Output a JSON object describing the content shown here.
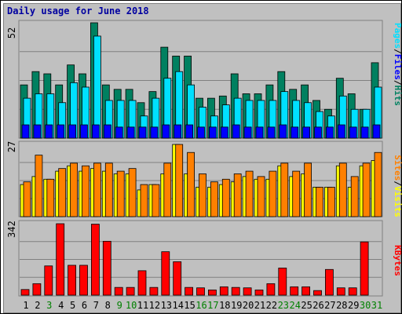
{
  "title": "Daily usage for June 2018",
  "colors": {
    "hits": "#008060",
    "files": "#0000ff",
    "pages": "#00e0ff",
    "visits": "#ffff00",
    "sites": "#ff8000",
    "kbytes": "#ff0000",
    "weekend_day": "#008000",
    "weekday_day": "#000000",
    "title": "#0000a0",
    "background": "#c0c0c0"
  },
  "legend": {
    "top": {
      "pages": "Pages",
      "files": "Files",
      "hits": "Hits",
      "sep": "/"
    },
    "middle": {
      "sites": "Sites",
      "visits": "Visits",
      "sep": "/"
    },
    "bottom": {
      "kbytes": "KBytes"
    }
  },
  "chart_data": [
    {
      "type": "bar",
      "panel": "hits-files-pages",
      "ymax_label": "52",
      "ylim": [
        0,
        52
      ],
      "categories": [
        "1",
        "2",
        "3",
        "4",
        "5",
        "6",
        "7",
        "8",
        "9",
        "10",
        "11",
        "12",
        "13",
        "14",
        "15",
        "16",
        "17",
        "18",
        "19",
        "20",
        "21",
        "22",
        "23",
        "24",
        "25",
        "26",
        "27",
        "28",
        "29",
        "30",
        "31"
      ],
      "series": [
        {
          "name": "Hits",
          "values": [
            24,
            30,
            29,
            24,
            33,
            29,
            52,
            24,
            22,
            22,
            16,
            21,
            41,
            37,
            37,
            18,
            18,
            19,
            29,
            20,
            20,
            24,
            30,
            22,
            24,
            17,
            13,
            27,
            20,
            13,
            34
          ]
        },
        {
          "name": "Files",
          "values": [
            6,
            6,
            6,
            6,
            6,
            6,
            6,
            6,
            5,
            5,
            5,
            5,
            6,
            6,
            6,
            5,
            5,
            5,
            6,
            5,
            5,
            5,
            6,
            5,
            5,
            5,
            5,
            6,
            5,
            5,
            6
          ]
        },
        {
          "name": "Pages",
          "values": [
            18,
            20,
            20,
            16,
            25,
            23,
            46,
            17,
            17,
            17,
            10,
            18,
            27,
            30,
            24,
            14,
            10,
            15,
            18,
            17,
            17,
            17,
            21,
            17,
            16,
            12,
            10,
            19,
            13,
            13,
            23
          ]
        }
      ]
    },
    {
      "type": "bar",
      "panel": "visits-sites",
      "ymax_label": "27",
      "ylim": [
        0,
        27
      ],
      "categories": [
        "1",
        "2",
        "3",
        "4",
        "5",
        "6",
        "7",
        "8",
        "9",
        "10",
        "11",
        "12",
        "13",
        "14",
        "15",
        "16",
        "17",
        "18",
        "19",
        "20",
        "21",
        "22",
        "23",
        "24",
        "25",
        "26",
        "27",
        "28",
        "29",
        "30",
        "31"
      ],
      "series": [
        {
          "name": "Visits",
          "values": [
            12,
            15,
            14,
            17,
            19,
            17,
            18,
            17,
            16,
            16,
            10,
            12,
            16,
            27,
            16,
            11,
            11,
            12,
            13,
            15,
            14,
            14,
            19,
            15,
            16,
            11,
            11,
            19,
            11,
            19,
            21
          ]
        },
        {
          "name": "Sites",
          "values": [
            13,
            23,
            14,
            18,
            20,
            19,
            20,
            20,
            17,
            18,
            12,
            12,
            20,
            27,
            24,
            16,
            13,
            14,
            16,
            17,
            15,
            17,
            20,
            17,
            20,
            11,
            11,
            20,
            15,
            20,
            24
          ]
        }
      ]
    },
    {
      "type": "bar",
      "panel": "kbytes",
      "ymax_label": "342",
      "ylim": [
        0,
        342
      ],
      "categories": [
        "1",
        "2",
        "3",
        "4",
        "5",
        "6",
        "7",
        "8",
        "9",
        "10",
        "11",
        "12",
        "13",
        "14",
        "15",
        "16",
        "17",
        "18",
        "19",
        "20",
        "21",
        "22",
        "23",
        "24",
        "25",
        "26",
        "27",
        "28",
        "29",
        "30",
        "31"
      ],
      "series": [
        {
          "name": "KBytes",
          "values": [
            27,
            55,
            140,
            342,
            143,
            143,
            340,
            258,
            37,
            37,
            117,
            37,
            208,
            160,
            37,
            35,
            25,
            40,
            37,
            35,
            25,
            55,
            130,
            40,
            40,
            22,
            123,
            35,
            35,
            255,
            0
          ]
        }
      ]
    }
  ],
  "weekend_days": [
    3,
    9,
    10,
    16,
    17,
    23,
    24,
    30,
    31
  ]
}
